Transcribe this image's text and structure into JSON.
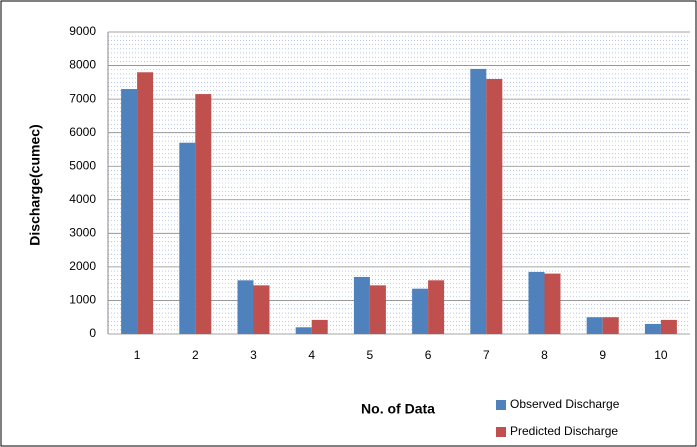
{
  "chart_data": {
    "type": "bar",
    "x_label": "No. of Data",
    "y_label": "Discharge(cumec)",
    "categories": [
      "1",
      "2",
      "3",
      "4",
      "5",
      "6",
      "7",
      "8",
      "9",
      "10"
    ],
    "series": [
      {
        "name": "Observed Discharge",
        "color": "#4f81bd",
        "values": [
          7300,
          5700,
          1600,
          200,
          1700,
          1350,
          7900,
          1850,
          500,
          300
        ]
      },
      {
        "name": "Predicted Discharge",
        "color": "#c0504d",
        "values": [
          7800,
          7150,
          1450,
          420,
          1450,
          1600,
          7600,
          1800,
          500,
          420
        ]
      }
    ],
    "ylim": [
      0,
      9000
    ],
    "yticks": [
      0,
      1000,
      2000,
      3000,
      4000,
      5000,
      6000,
      7000,
      8000,
      9000
    ],
    "grid": true,
    "legend": "bottom-right"
  }
}
